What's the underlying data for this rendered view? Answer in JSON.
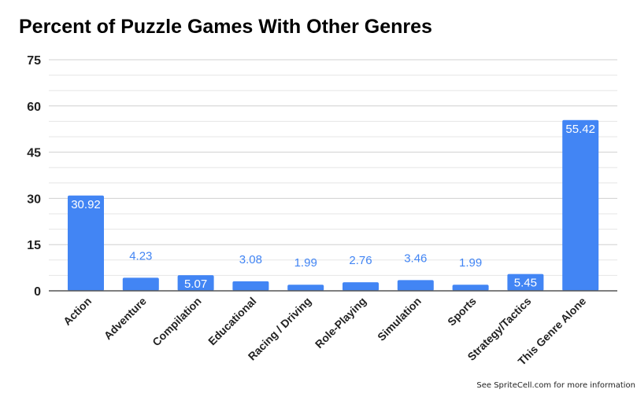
{
  "chart_data": {
    "type": "bar",
    "title": "Percent of Puzzle Games With Other Genres",
    "categories": [
      "Action",
      "Adventure",
      "Compilation",
      "Educational",
      "Racing / Driving",
      "Role-Playing",
      "Simulation",
      "Sports",
      "Strategy/Tactics",
      "This Genre Alone"
    ],
    "values": [
      30.92,
      4.23,
      5.07,
      3.08,
      1.99,
      2.76,
      3.46,
      1.99,
      5.45,
      55.42
    ],
    "value_labels": [
      "30.92",
      "4.23",
      "5.07",
      "3.08",
      "1.99",
      "2.76",
      "3.46",
      "1.99",
      "5.45",
      "55.42"
    ],
    "xlabel": "",
    "ylabel": "",
    "ylim": [
      0,
      75
    ],
    "yticks": [
      "0",
      "15",
      "30",
      "45",
      "60",
      "75"
    ],
    "minor_grid_step": 5,
    "grid": true,
    "legend": "none",
    "bar_color": "#4285f4"
  },
  "footer": "See SpriteCell.com for more information"
}
